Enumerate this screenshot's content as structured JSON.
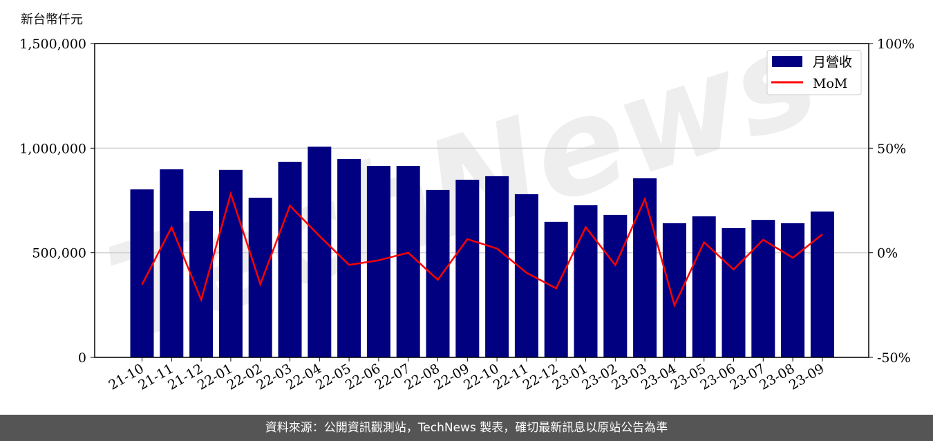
{
  "chart_data": {
    "type": "bar+line",
    "ylabel": "新台幣仟元",
    "categories": [
      "21-10",
      "21-11",
      "21-12",
      "22-01",
      "22-02",
      "22-03",
      "22-04",
      "22-05",
      "22-06",
      "22-07",
      "22-08",
      "22-09",
      "22-10",
      "22-11",
      "22-12",
      "23-01",
      "23-02",
      "23-03",
      "23-04",
      "23-05",
      "23-06",
      "23-07",
      "23-08",
      "23-09"
    ],
    "series": [
      {
        "name": "月營收",
        "type": "bar",
        "axis": "left",
        "color": "#000080",
        "values": [
          803000,
          899000,
          700000,
          896000,
          763000,
          935000,
          1007000,
          948000,
          915000,
          915000,
          800000,
          849000,
          866000,
          780000,
          648000,
          727000,
          681000,
          856000,
          641000,
          674000,
          618000,
          657000,
          641000,
          697000
        ]
      },
      {
        "name": "MoM",
        "type": "line",
        "axis": "right",
        "unit": "%",
        "color": "#ff0000",
        "values": [
          -15.2,
          12.2,
          -22.5,
          28.2,
          -15.0,
          22.5,
          8.0,
          -5.8,
          -3.6,
          0.0,
          -12.9,
          6.5,
          2.0,
          -9.6,
          -17.0,
          12.2,
          -5.9,
          25.7,
          -25.1,
          5.0,
          -8.0,
          6.2,
          -2.4,
          8.8
        ]
      }
    ],
    "ylim_left": [
      0,
      1500000
    ],
    "yticks_left": [
      "0",
      "500,000",
      "1,000,000",
      "1,500,000"
    ],
    "ylim_right": [
      -50,
      100
    ],
    "yticks_right": [
      "-50%",
      "0%",
      "50%",
      "100%"
    ],
    "grid": true,
    "legend": "top-right"
  },
  "watermark": "TechNews",
  "footer": "資料來源：公開資訊觀測站，TechNews 製表，確切最新訊息以原站公告為準"
}
